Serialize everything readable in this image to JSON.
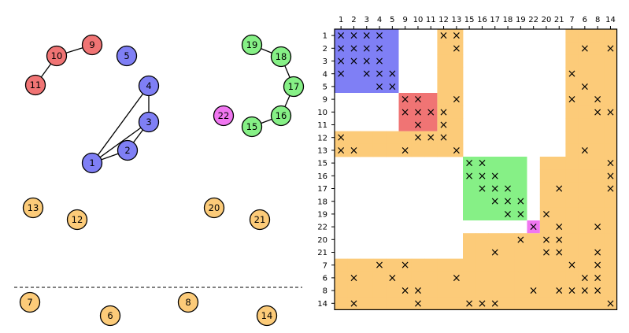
{
  "colors": {
    "blue": "#7f7ff5",
    "red": "#f07474",
    "green": "#86f086",
    "magenta": "#f076f0",
    "orange": "#fccb79"
  },
  "graph": {
    "nodes": [
      {
        "id": "1",
        "label": "1",
        "group": "blue"
      },
      {
        "id": "2",
        "label": "2",
        "group": "blue"
      },
      {
        "id": "3",
        "label": "3",
        "group": "blue"
      },
      {
        "id": "4",
        "label": "4",
        "group": "blue"
      },
      {
        "id": "5",
        "label": "5",
        "group": "blue"
      },
      {
        "id": "9",
        "label": "9",
        "group": "red"
      },
      {
        "id": "10",
        "label": "10",
        "group": "red"
      },
      {
        "id": "11",
        "label": "11",
        "group": "red"
      },
      {
        "id": "19",
        "label": "19",
        "group": "green"
      },
      {
        "id": "18",
        "label": "18",
        "group": "green"
      },
      {
        "id": "17",
        "label": "17",
        "group": "green"
      },
      {
        "id": "16",
        "label": "16",
        "group": "green"
      },
      {
        "id": "15",
        "label": "15",
        "group": "green"
      },
      {
        "id": "22",
        "label": "22",
        "group": "magenta"
      },
      {
        "id": "13",
        "label": "13",
        "group": "orange"
      },
      {
        "id": "12",
        "label": "12",
        "group": "orange"
      },
      {
        "id": "20",
        "label": "20",
        "group": "orange"
      },
      {
        "id": "21",
        "label": "21",
        "group": "orange"
      },
      {
        "id": "7",
        "label": "7",
        "group": "orange"
      },
      {
        "id": "6",
        "label": "6",
        "group": "orange"
      },
      {
        "id": "8",
        "label": "8",
        "group": "orange"
      },
      {
        "id": "14",
        "label": "14",
        "group": "orange"
      }
    ],
    "edges": [
      [
        "11",
        "10"
      ],
      [
        "10",
        "9"
      ],
      [
        "4",
        "3"
      ],
      [
        "4",
        "1"
      ],
      [
        "3",
        "1"
      ],
      [
        "3",
        "2"
      ],
      [
        "2",
        "1"
      ],
      [
        "19",
        "18"
      ],
      [
        "18",
        "17"
      ],
      [
        "17",
        "16"
      ],
      [
        "16",
        "15"
      ]
    ]
  },
  "matrix": {
    "columns": [
      "1",
      "2",
      "3",
      "4",
      "5",
      "9",
      "10",
      "11",
      "12",
      "13",
      "15",
      "16",
      "17",
      "18",
      "19",
      "22",
      "20",
      "21",
      "7",
      "6",
      "8",
      "14"
    ],
    "rows": [
      "1",
      "2",
      "3",
      "4",
      "5",
      "9",
      "10",
      "11",
      "12",
      "13",
      "15",
      "16",
      "17",
      "18",
      "19",
      "22",
      "20",
      "21",
      "7",
      "6",
      "8",
      "14"
    ],
    "mark": "×",
    "blocks": [
      {
        "rows": [
          0,
          5
        ],
        "cols": [
          0,
          5
        ],
        "color": "blue"
      },
      {
        "rows": [
          5,
          8
        ],
        "cols": [
          5,
          8
        ],
        "color": "red"
      },
      {
        "rows": [
          10,
          15
        ],
        "cols": [
          10,
          15
        ],
        "color": "green"
      },
      {
        "rows": [
          15,
          16
        ],
        "cols": [
          15,
          16
        ],
        "color": "magenta"
      }
    ],
    "orange_cells": [
      [
        0,
        8
      ],
      [
        0,
        9
      ],
      [
        0,
        18
      ],
      [
        0,
        19
      ],
      [
        0,
        20
      ],
      [
        0,
        21
      ],
      [
        1,
        8
      ],
      [
        1,
        9
      ],
      [
        1,
        18
      ],
      [
        1,
        19
      ],
      [
        1,
        20
      ],
      [
        1,
        21
      ],
      [
        2,
        8
      ],
      [
        2,
        9
      ],
      [
        2,
        18
      ],
      [
        2,
        19
      ],
      [
        2,
        20
      ],
      [
        2,
        21
      ],
      [
        3,
        8
      ],
      [
        3,
        9
      ],
      [
        3,
        18
      ],
      [
        3,
        19
      ],
      [
        3,
        20
      ],
      [
        3,
        21
      ],
      [
        4,
        8
      ],
      [
        4,
        9
      ],
      [
        4,
        18
      ],
      [
        4,
        19
      ],
      [
        4,
        20
      ],
      [
        4,
        21
      ],
      [
        5,
        8
      ],
      [
        5,
        9
      ],
      [
        5,
        18
      ],
      [
        5,
        19
      ],
      [
        5,
        20
      ],
      [
        5,
        21
      ],
      [
        6,
        8
      ],
      [
        6,
        9
      ],
      [
        6,
        18
      ],
      [
        6,
        19
      ],
      [
        6,
        20
      ],
      [
        6,
        21
      ],
      [
        7,
        8
      ],
      [
        7,
        9
      ],
      [
        7,
        18
      ],
      [
        7,
        19
      ],
      [
        7,
        20
      ],
      [
        7,
        21
      ],
      [
        8,
        0
      ],
      [
        8,
        1
      ],
      [
        8,
        2
      ],
      [
        8,
        3
      ],
      [
        8,
        4
      ],
      [
        8,
        5
      ],
      [
        8,
        6
      ],
      [
        8,
        7
      ],
      [
        8,
        8
      ],
      [
        8,
        9
      ],
      [
        8,
        18
      ],
      [
        8,
        19
      ],
      [
        8,
        20
      ],
      [
        8,
        21
      ],
      [
        9,
        0
      ],
      [
        9,
        1
      ],
      [
        9,
        2
      ],
      [
        9,
        3
      ],
      [
        9,
        4
      ],
      [
        9,
        5
      ],
      [
        9,
        6
      ],
      [
        9,
        7
      ],
      [
        9,
        8
      ],
      [
        9,
        9
      ],
      [
        9,
        18
      ],
      [
        9,
        19
      ],
      [
        9,
        20
      ],
      [
        9,
        21
      ],
      [
        10,
        16
      ],
      [
        10,
        17
      ],
      [
        10,
        18
      ],
      [
        10,
        19
      ],
      [
        10,
        20
      ],
      [
        10,
        21
      ],
      [
        11,
        16
      ],
      [
        11,
        17
      ],
      [
        11,
        18
      ],
      [
        11,
        19
      ],
      [
        11,
        20
      ],
      [
        11,
        21
      ],
      [
        12,
        16
      ],
      [
        12,
        17
      ],
      [
        12,
        18
      ],
      [
        12,
        19
      ],
      [
        12,
        20
      ],
      [
        12,
        21
      ],
      [
        13,
        16
      ],
      [
        13,
        17
      ],
      [
        13,
        18
      ],
      [
        13,
        19
      ],
      [
        13,
        20
      ],
      [
        13,
        21
      ],
      [
        14,
        16
      ],
      [
        14,
        17
      ],
      [
        14,
        18
      ],
      [
        14,
        19
      ],
      [
        14,
        20
      ],
      [
        14,
        21
      ],
      [
        15,
        16
      ],
      [
        15,
        17
      ],
      [
        15,
        18
      ],
      [
        15,
        19
      ],
      [
        15,
        20
      ],
      [
        15,
        21
      ],
      [
        16,
        10
      ],
      [
        16,
        11
      ],
      [
        16,
        12
      ],
      [
        16,
        13
      ],
      [
        16,
        14
      ],
      [
        16,
        15
      ],
      [
        16,
        16
      ],
      [
        16,
        17
      ],
      [
        16,
        18
      ],
      [
        16,
        19
      ],
      [
        16,
        20
      ],
      [
        16,
        21
      ],
      [
        17,
        10
      ],
      [
        17,
        11
      ],
      [
        17,
        12
      ],
      [
        17,
        13
      ],
      [
        17,
        14
      ],
      [
        17,
        15
      ],
      [
        17,
        16
      ],
      [
        17,
        17
      ],
      [
        17,
        18
      ],
      [
        17,
        19
      ],
      [
        17,
        20
      ],
      [
        17,
        21
      ],
      [
        18,
        0
      ],
      [
        18,
        1
      ],
      [
        18,
        2
      ],
      [
        18,
        3
      ],
      [
        18,
        4
      ],
      [
        18,
        5
      ],
      [
        18,
        6
      ],
      [
        18,
        7
      ],
      [
        18,
        8
      ],
      [
        18,
        9
      ],
      [
        18,
        10
      ],
      [
        18,
        11
      ],
      [
        18,
        12
      ],
      [
        18,
        13
      ],
      [
        18,
        14
      ],
      [
        18,
        15
      ],
      [
        18,
        16
      ],
      [
        18,
        17
      ],
      [
        18,
        18
      ],
      [
        18,
        19
      ],
      [
        18,
        20
      ],
      [
        18,
        21
      ],
      [
        19,
        0
      ],
      [
        19,
        1
      ],
      [
        19,
        2
      ],
      [
        19,
        3
      ],
      [
        19,
        4
      ],
      [
        19,
        5
      ],
      [
        19,
        6
      ],
      [
        19,
        7
      ],
      [
        19,
        8
      ],
      [
        19,
        9
      ],
      [
        19,
        10
      ],
      [
        19,
        11
      ],
      [
        19,
        12
      ],
      [
        19,
        13
      ],
      [
        19,
        14
      ],
      [
        19,
        15
      ],
      [
        19,
        16
      ],
      [
        19,
        17
      ],
      [
        19,
        18
      ],
      [
        19,
        19
      ],
      [
        19,
        20
      ],
      [
        19,
        21
      ],
      [
        20,
        0
      ],
      [
        20,
        1
      ],
      [
        20,
        2
      ],
      [
        20,
        3
      ],
      [
        20,
        4
      ],
      [
        20,
        5
      ],
      [
        20,
        6
      ],
      [
        20,
        7
      ],
      [
        20,
        8
      ],
      [
        20,
        9
      ],
      [
        20,
        10
      ],
      [
        20,
        11
      ],
      [
        20,
        12
      ],
      [
        20,
        13
      ],
      [
        20,
        14
      ],
      [
        20,
        15
      ],
      [
        20,
        16
      ],
      [
        20,
        17
      ],
      [
        20,
        18
      ],
      [
        20,
        19
      ],
      [
        20,
        20
      ],
      [
        20,
        21
      ],
      [
        21,
        0
      ],
      [
        21,
        1
      ],
      [
        21,
        2
      ],
      [
        21,
        3
      ],
      [
        21,
        4
      ],
      [
        21,
        5
      ],
      [
        21,
        6
      ],
      [
        21,
        7
      ],
      [
        21,
        8
      ],
      [
        21,
        9
      ],
      [
        21,
        10
      ],
      [
        21,
        11
      ],
      [
        21,
        12
      ],
      [
        21,
        13
      ],
      [
        21,
        14
      ],
      [
        21,
        15
      ],
      [
        21,
        16
      ],
      [
        21,
        17
      ],
      [
        21,
        18
      ],
      [
        21,
        19
      ],
      [
        21,
        20
      ],
      [
        21,
        21
      ]
    ],
    "marks": [
      [
        0,
        0
      ],
      [
        0,
        1
      ],
      [
        0,
        2
      ],
      [
        0,
        3
      ],
      [
        0,
        8
      ],
      [
        0,
        9
      ],
      [
        1,
        0
      ],
      [
        1,
        1
      ],
      [
        1,
        2
      ],
      [
        1,
        3
      ],
      [
        1,
        9
      ],
      [
        1,
        19
      ],
      [
        1,
        21
      ],
      [
        2,
        0
      ],
      [
        2,
        1
      ],
      [
        2,
        2
      ],
      [
        2,
        3
      ],
      [
        3,
        0
      ],
      [
        3,
        2
      ],
      [
        3,
        3
      ],
      [
        3,
        4
      ],
      [
        3,
        18
      ],
      [
        4,
        3
      ],
      [
        4,
        4
      ],
      [
        4,
        19
      ],
      [
        5,
        5
      ],
      [
        5,
        6
      ],
      [
        5,
        9
      ],
      [
        5,
        18
      ],
      [
        5,
        20
      ],
      [
        6,
        5
      ],
      [
        6,
        6
      ],
      [
        6,
        7
      ],
      [
        6,
        8
      ],
      [
        6,
        20
      ],
      [
        6,
        21
      ],
      [
        7,
        6
      ],
      [
        7,
        8
      ],
      [
        8,
        0
      ],
      [
        8,
        6
      ],
      [
        8,
        7
      ],
      [
        8,
        8
      ],
      [
        9,
        0
      ],
      [
        9,
        1
      ],
      [
        9,
        5
      ],
      [
        9,
        9
      ],
      [
        9,
        19
      ],
      [
        10,
        10
      ],
      [
        10,
        11
      ],
      [
        10,
        21
      ],
      [
        11,
        10
      ],
      [
        11,
        11
      ],
      [
        11,
        12
      ],
      [
        11,
        21
      ],
      [
        12,
        11
      ],
      [
        12,
        12
      ],
      [
        12,
        13
      ],
      [
        12,
        17
      ],
      [
        12,
        21
      ],
      [
        13,
        12
      ],
      [
        13,
        13
      ],
      [
        13,
        14
      ],
      [
        14,
        13
      ],
      [
        14,
        14
      ],
      [
        14,
        16
      ],
      [
        15,
        15
      ],
      [
        15,
        17
      ],
      [
        15,
        20
      ],
      [
        16,
        14
      ],
      [
        16,
        16
      ],
      [
        16,
        17
      ],
      [
        17,
        12
      ],
      [
        17,
        16
      ],
      [
        17,
        17
      ],
      [
        17,
        20
      ],
      [
        18,
        3
      ],
      [
        18,
        5
      ],
      [
        18,
        18
      ],
      [
        18,
        20
      ],
      [
        19,
        1
      ],
      [
        19,
        4
      ],
      [
        19,
        9
      ],
      [
        19,
        19
      ],
      [
        19,
        20
      ],
      [
        20,
        5
      ],
      [
        20,
        6
      ],
      [
        20,
        15
      ],
      [
        20,
        17
      ],
      [
        20,
        18
      ],
      [
        20,
        19
      ],
      [
        20,
        20
      ],
      [
        21,
        1
      ],
      [
        21,
        6
      ],
      [
        21,
        10
      ],
      [
        21,
        11
      ],
      [
        21,
        12
      ],
      [
        21,
        21
      ]
    ]
  }
}
